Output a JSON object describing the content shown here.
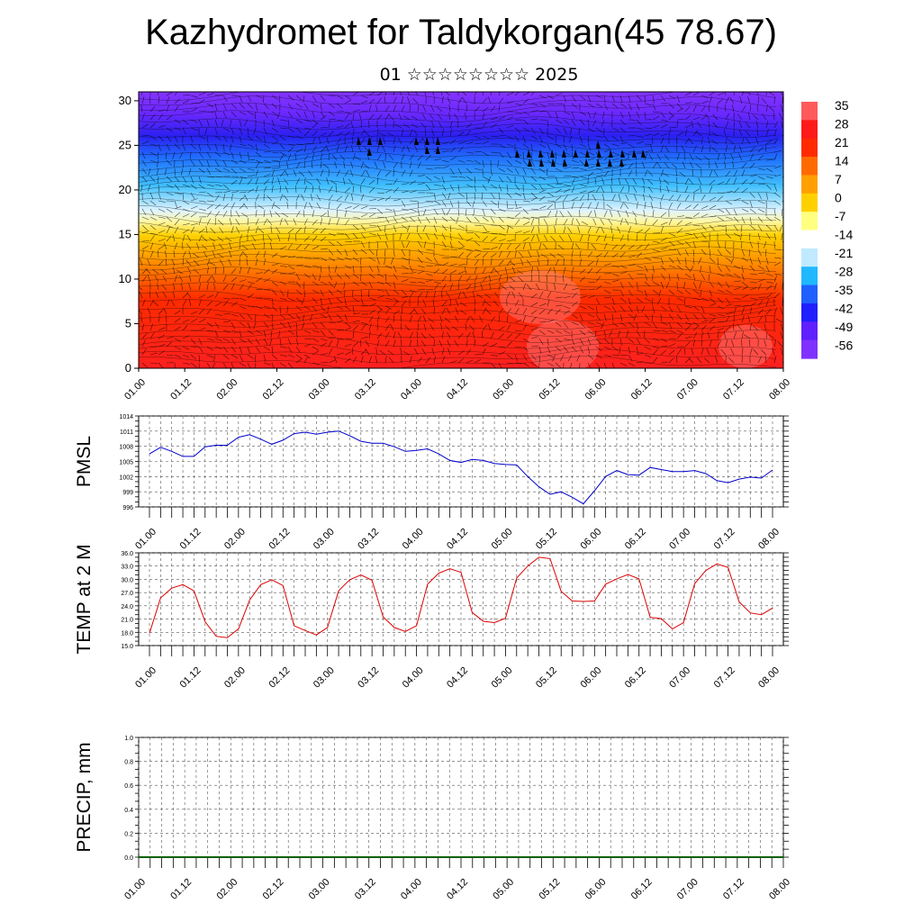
{
  "title": "Kazhydromet for Taldykorgan(45 78.67)",
  "subtitle": "01 ☆☆☆☆☆☆☆☆ 2025",
  "chart_data": [
    {
      "type": "heatmap",
      "name": "Vertical cross-section (temperature with wind barbs)",
      "x_ticks": [
        "01.00",
        "01.12",
        "02.00",
        "02.12",
        "03.00",
        "03.12",
        "04.00",
        "04.12",
        "05.00",
        "05.12",
        "06.00",
        "06.12",
        "07.00",
        "07.12",
        "08.00"
      ],
      "y_ticks": [
        0,
        5,
        10,
        15,
        20,
        25,
        30
      ],
      "ylim": [
        0,
        31
      ],
      "colorbar_labels": [
        "35",
        "28",
        "21",
        "14",
        "7",
        "0",
        "-7",
        "-14",
        "-21",
        "-28",
        "-35",
        "-42",
        "-49",
        "-56"
      ],
      "color_stops": [
        "#ff5a5a",
        "#ff1a1a",
        "#ff2a00",
        "#ff6a00",
        "#ffa000",
        "#ffd000",
        "#ffff80",
        "#ffffff",
        "#c0eaff",
        "#20b8ff",
        "#2060ff",
        "#2020ff",
        "#6020ff",
        "#8030ff"
      ]
    },
    {
      "type": "line",
      "ylabel": "PMSL",
      "ylim": [
        996,
        1014
      ],
      "y_ticks": [
        "1014",
        "1011",
        "1008",
        "1005",
        "1002",
        "999",
        "996"
      ],
      "x_ticks": [
        "01.00",
        "01.12",
        "02.00",
        "02.12",
        "03.00",
        "03.12",
        "04.00",
        "04.12",
        "05.00",
        "05.12",
        "06.00",
        "06.12",
        "07.00",
        "07.12",
        "08.00"
      ],
      "color": "#0000cc",
      "values": [
        1006.5,
        1007.8,
        1007.0,
        1006.0,
        1006.0,
        1007.9,
        1008.2,
        1008.2,
        1009.8,
        1010.3,
        1009.4,
        1008.4,
        1009.2,
        1010.5,
        1010.8,
        1010.4,
        1010.8,
        1011.0,
        1010.1,
        1009.0,
        1008.6,
        1008.6,
        1007.9,
        1007.0,
        1007.2,
        1007.5,
        1006.5,
        1005.2,
        1004.8,
        1005.4,
        1005.2,
        1004.6,
        1004.4,
        1004.3,
        1002.0,
        1000.0,
        998.5,
        999.0,
        997.9,
        996.6,
        999.2,
        1002.0,
        1003.2,
        1002.4,
        1002.3,
        1003.8,
        1003.4,
        1003.0,
        1003.0,
        1003.2,
        1002.6,
        1001.2,
        1000.8,
        1001.5,
        1001.9,
        1001.7,
        1003.3
      ]
    },
    {
      "type": "line",
      "ylabel": "TEMP at 2 M",
      "ylim": [
        15,
        36
      ],
      "y_ticks": [
        "36.0",
        "33.0",
        "30.0",
        "27.0",
        "24.0",
        "21.0",
        "18.0",
        "15.0"
      ],
      "x_ticks": [
        "01.00",
        "01.12",
        "02.00",
        "02.12",
        "03.00",
        "03.12",
        "04.00",
        "04.12",
        "05.00",
        "05.12",
        "06.00",
        "06.12",
        "07.00",
        "07.12",
        "08.00"
      ],
      "color": "#dd0000",
      "values": [
        17.8,
        25.8,
        28.0,
        28.8,
        27.4,
        20.4,
        17.1,
        16.8,
        18.8,
        25.3,
        28.8,
        29.9,
        28.6,
        19.5,
        18.4,
        17.4,
        19.1,
        27.4,
        29.9,
        31.0,
        29.8,
        21.5,
        19.1,
        18.2,
        19.5,
        28.9,
        31.4,
        32.4,
        31.6,
        22.5,
        20.5,
        20.2,
        21.2,
        30.3,
        33.0,
        35.0,
        34.7,
        27.3,
        25.1,
        25.0,
        25.1,
        28.9,
        30.1,
        31.1,
        30.1,
        21.4,
        21.1,
        18.8,
        20.2,
        29.0,
        32.0,
        33.5,
        32.7,
        24.9,
        22.4,
        22.0,
        23.5
      ]
    },
    {
      "type": "line",
      "ylabel": "PRECIP, mm",
      "ylim": [
        0,
        1
      ],
      "y_ticks": [
        "1.0",
        "0.8",
        "0.6",
        "0.4",
        "0.2",
        "0.0"
      ],
      "x_ticks": [
        "01.00",
        "01.12",
        "02.00",
        "02.12",
        "03.00",
        "03.12",
        "04.00",
        "04.12",
        "05.00",
        "05.12",
        "06.00",
        "06.12",
        "07.00",
        "07.12",
        "08.00"
      ],
      "color": "#006000",
      "values": [
        0,
        0,
        0,
        0,
        0,
        0,
        0,
        0,
        0,
        0,
        0,
        0,
        0,
        0,
        0,
        0,
        0,
        0,
        0,
        0,
        0,
        0,
        0,
        0,
        0,
        0,
        0,
        0,
        0,
        0,
        0,
        0,
        0,
        0,
        0,
        0,
        0,
        0,
        0,
        0,
        0,
        0,
        0,
        0,
        0,
        0,
        0,
        0,
        0,
        0,
        0,
        0,
        0,
        0,
        0,
        0,
        0
      ]
    }
  ]
}
